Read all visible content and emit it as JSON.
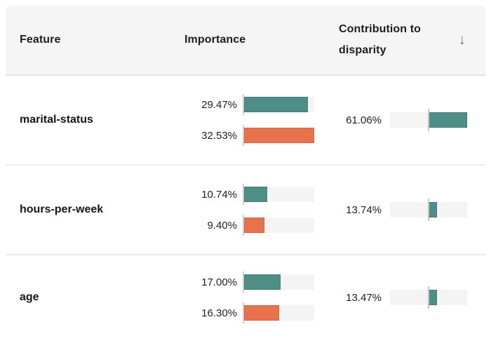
{
  "header": {
    "feature_label": "Feature",
    "importance_label": "Importance",
    "contribution_label_line1": "Contribution to",
    "contribution_label_line2": "disparity",
    "sort_icon": "↓"
  },
  "colors": {
    "teal": "#4f8e86",
    "orange": "#e7724c",
    "bar_track": "#f4f4f4",
    "header_bg": "#f5f5f5",
    "separator": "#ececec",
    "baseline": "#cfcfcf"
  },
  "scales": {
    "importance_max": 32.53,
    "contribution_max": 61.06
  },
  "rows": [
    {
      "feature": "marital-status",
      "importance": [
        {
          "label": "29.47%",
          "value": 29.47
        },
        {
          "label": "32.53%",
          "value": 32.53
        }
      ],
      "contribution": {
        "label": "61.06%",
        "value": 61.06
      }
    },
    {
      "feature": "hours-per-week",
      "importance": [
        {
          "label": "10.74%",
          "value": 10.74
        },
        {
          "label": "9.40%",
          "value": 9.4
        }
      ],
      "contribution": {
        "label": "13.74%",
        "value": 13.74
      }
    },
    {
      "feature": "age",
      "importance": [
        {
          "label": "17.00%",
          "value": 17.0
        },
        {
          "label": "16.30%",
          "value": 16.3
        }
      ],
      "contribution": {
        "label": "13.47%",
        "value": 13.47
      }
    }
  ]
}
